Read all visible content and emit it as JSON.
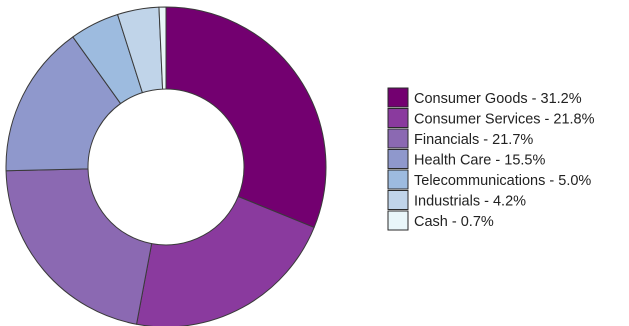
{
  "chart_data": {
    "type": "pie",
    "donut": true,
    "start": "top",
    "direction": "clockwise",
    "legend_position": "right",
    "categories": [
      "Consumer Goods",
      "Consumer Services",
      "Financials",
      "Health Care",
      "Telecommunications",
      "Industrials",
      "Cash"
    ],
    "values": [
      31.2,
      21.8,
      21.7,
      15.5,
      5.0,
      4.2,
      0.7
    ],
    "legend_labels": [
      "Consumer Goods - 31.2%",
      "Consumer Services - 21.8%",
      "Financials - 21.7%",
      "Health Care - 15.5%",
      "Telecommunications - 5.0%",
      "Industrials - 4.2%",
      "Cash - 0.7%"
    ],
    "colors": [
      "#730070",
      "#8a3a9e",
      "#8b69b2",
      "#8f98cc",
      "#9dbbdf",
      "#c0d4e9",
      "#e9f6f9"
    ]
  }
}
